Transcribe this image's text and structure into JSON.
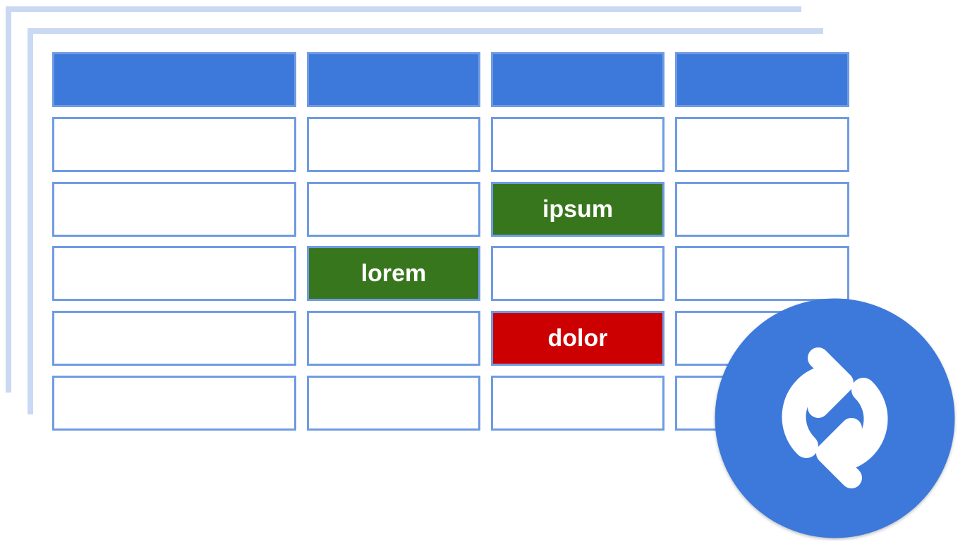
{
  "grid": {
    "columns": 4,
    "rows": [
      [
        "",
        "",
        "",
        ""
      ],
      [
        "",
        "",
        "",
        ""
      ],
      [
        "",
        "",
        "ipsum",
        ""
      ],
      [
        "",
        "lorem",
        "",
        ""
      ],
      [
        "",
        "",
        "dolor",
        ""
      ],
      [
        "",
        "",
        "",
        ""
      ]
    ],
    "header_row_color": "#3d79da",
    "cell_border_color": "#6f9be2",
    "highlights": [
      {
        "text": "ipsum",
        "color": "#38761d"
      },
      {
        "text": "lorem",
        "color": "#38761d"
      },
      {
        "text": "dolor",
        "color": "#cc0000"
      }
    ]
  },
  "badge": {
    "icon": "sync-icon",
    "color": "#3d79da"
  },
  "back_sheet_color": "#c9d9f3"
}
